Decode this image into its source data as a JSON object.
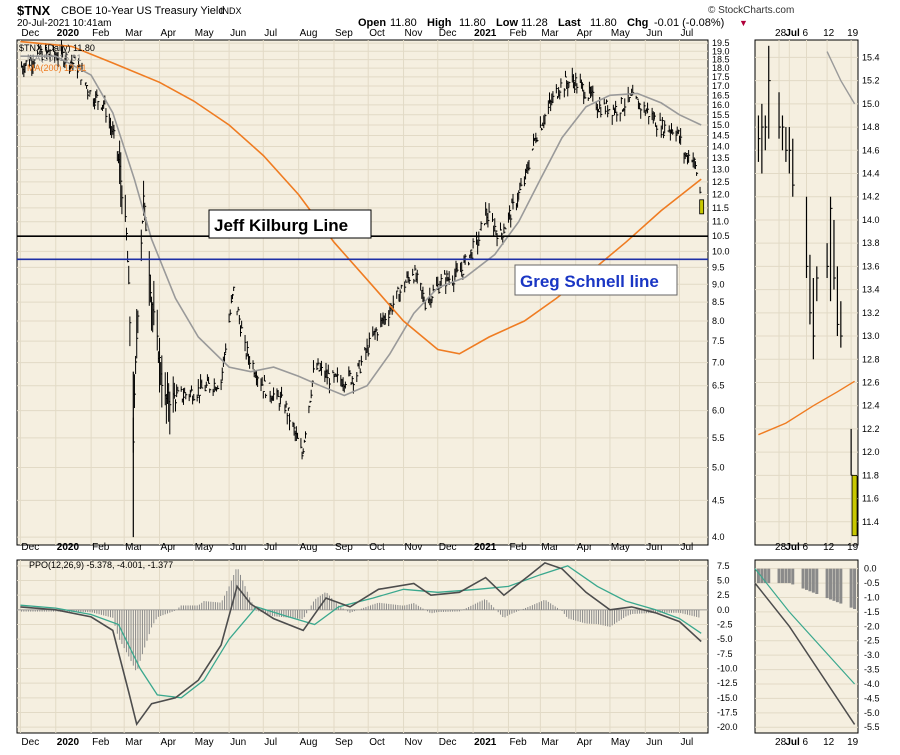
{
  "header": {
    "symbol": "$TNX",
    "name": "CBOE 10-Year US Treasury Yield",
    "exchange": "INDX",
    "date": "20-Jul-2021 10:41am",
    "credit": "© StockCharts.com",
    "ohlc": [
      {
        "label": "Open",
        "value": "11.80"
      },
      {
        "label": "High",
        "value": "11.80"
      },
      {
        "label": "Low",
        "value": "11.28"
      },
      {
        "label": "Last",
        "value": "11.80"
      }
    ],
    "chg_label": "Chg",
    "chg_value": "-0.01 (-0.08%)",
    "chg_arrow": "▼"
  },
  "colors": {
    "panel_bg": "#f5efe0",
    "grid": "#e2dac6",
    "price_bars": "#000000",
    "ma50": "#9a9a9a",
    "ma200": "#ef7c22",
    "kilburg_line": "#000000",
    "schnell_line": "#1d2fa6",
    "schnell_text": "#1a36c4",
    "highlight_bar": "#c8c800",
    "ppo_line": "#4d4d4d",
    "ppo_signal": "#3aa88e",
    "histogram": "#8a8a8a",
    "down_arrow": "#b0003a"
  },
  "legends": {
    "price": "$TNX (Daily) 11.80",
    "ma50": "MA(50) 15.01",
    "ma200": "MA(200) 12.61",
    "ppo": "PPO(12,26,9) -5.378, -4.001, -1.377"
  },
  "annotations": {
    "kilburg": "Jeff Kilburg Line",
    "schnell": "Greg Schnell line"
  },
  "chart_data": {
    "type": "line",
    "main": {
      "x_labels": [
        "Dec",
        "2020",
        "Feb",
        "Mar",
        "Apr",
        "May",
        "Jun",
        "Jul",
        "Aug",
        "Sep",
        "Oct",
        "Nov",
        "Dec",
        "2021",
        "Feb",
        "Mar",
        "Apr",
        "May",
        "Jun",
        "Jul"
      ],
      "bold_x_labels": [
        "2020",
        "2021"
      ],
      "x_months": [
        "2019-12",
        "2020-01",
        "2020-02",
        "2020-03",
        "2020-04",
        "2020-05",
        "2020-06",
        "2020-07",
        "2020-08",
        "2020-09",
        "2020-10",
        "2020-11",
        "2020-12",
        "2021-01",
        "2021-02",
        "2021-03",
        "2021-04",
        "2021-05",
        "2021-06",
        "2021-07"
      ],
      "y_ticks": [
        "19.5",
        "19.0",
        "18.5",
        "18.0",
        "17.5",
        "17.0",
        "16.5",
        "16.0",
        "15.5",
        "15.0",
        "14.5",
        "14.0",
        "13.5",
        "13.0",
        "12.5",
        "12.0",
        "11.5",
        "11.0",
        "10.5",
        "10.0",
        "9.5",
        "9.0",
        "8.5",
        "8.0",
        "7.5",
        "7.0",
        "6.5",
        "6.0",
        "5.5",
        "5.0",
        "4.5",
        "4.0"
      ],
      "ylim": [
        3.9,
        19.7
      ],
      "y_scale": "log",
      "grid": true,
      "close_series_approx": [
        {
          "x": "2019-12-02",
          "y": 18.1
        },
        {
          "x": "2019-12-20",
          "y": 18.9
        },
        {
          "x": "2020-01-08",
          "y": 18.7
        },
        {
          "x": "2020-01-20",
          "y": 18.1
        },
        {
          "x": "2020-02-01",
          "y": 16.5
        },
        {
          "x": "2020-02-12",
          "y": 16.1
        },
        {
          "x": "2020-02-24",
          "y": 13.8
        },
        {
          "x": "2020-03-03",
          "y": 10.5
        },
        {
          "x": "2020-03-09",
          "y": 5.5
        },
        {
          "x": "2020-03-18",
          "y": 11.8
        },
        {
          "x": "2020-03-25",
          "y": 8.5
        },
        {
          "x": "2020-04-05",
          "y": 6.2
        },
        {
          "x": "2020-04-20",
          "y": 6.3
        },
        {
          "x": "2020-05-05",
          "y": 6.4
        },
        {
          "x": "2020-05-25",
          "y": 6.6
        },
        {
          "x": "2020-06-05",
          "y": 8.8
        },
        {
          "x": "2020-06-15",
          "y": 7.3
        },
        {
          "x": "2020-07-01",
          "y": 6.5
        },
        {
          "x": "2020-07-20",
          "y": 6.1
        },
        {
          "x": "2020-08-04",
          "y": 5.2
        },
        {
          "x": "2020-08-15",
          "y": 6.9
        },
        {
          "x": "2020-09-01",
          "y": 6.6
        },
        {
          "x": "2020-09-20",
          "y": 6.7
        },
        {
          "x": "2020-10-07",
          "y": 7.7
        },
        {
          "x": "2020-10-22",
          "y": 8.4
        },
        {
          "x": "2020-11-09",
          "y": 9.4
        },
        {
          "x": "2020-11-20",
          "y": 8.5
        },
        {
          "x": "2020-12-05",
          "y": 9.1
        },
        {
          "x": "2020-12-20",
          "y": 9.3
        },
        {
          "x": "2021-01-06",
          "y": 10.4
        },
        {
          "x": "2021-01-12",
          "y": 11.3
        },
        {
          "x": "2021-01-25",
          "y": 10.5
        },
        {
          "x": "2021-02-05",
          "y": 11.5
        },
        {
          "x": "2021-02-15",
          "y": 12.5
        },
        {
          "x": "2021-02-25",
          "y": 14.5
        },
        {
          "x": "2021-03-08",
          "y": 15.8
        },
        {
          "x": "2021-03-18",
          "y": 17.0
        },
        {
          "x": "2021-03-30",
          "y": 17.3
        },
        {
          "x": "2021-04-10",
          "y": 16.7
        },
        {
          "x": "2021-04-22",
          "y": 15.9
        },
        {
          "x": "2021-05-07",
          "y": 15.8
        },
        {
          "x": "2021-05-20",
          "y": 16.3
        },
        {
          "x": "2021-06-04",
          "y": 15.6
        },
        {
          "x": "2021-06-15",
          "y": 14.9
        },
        {
          "x": "2021-06-28",
          "y": 14.8
        },
        {
          "x": "2021-07-06",
          "y": 13.6
        },
        {
          "x": "2021-07-12",
          "y": 13.6
        },
        {
          "x": "2021-07-16",
          "y": 12.9
        },
        {
          "x": "2021-07-20",
          "y": 11.8
        }
      ],
      "ma50_approx": [
        {
          "x": "2019-12-01",
          "y": 18.7
        },
        {
          "x": "2020-01-01",
          "y": 18.7
        },
        {
          "x": "2020-02-01",
          "y": 17.6
        },
        {
          "x": "2020-02-20",
          "y": 15.6
        },
        {
          "x": "2020-03-10",
          "y": 12.6
        },
        {
          "x": "2020-03-25",
          "y": 10.4
        },
        {
          "x": "2020-04-15",
          "y": 8.6
        },
        {
          "x": "2020-05-05",
          "y": 7.6
        },
        {
          "x": "2020-06-01",
          "y": 6.9
        },
        {
          "x": "2020-06-20",
          "y": 6.8
        },
        {
          "x": "2020-07-10",
          "y": 6.9
        },
        {
          "x": "2020-08-01",
          "y": 6.7
        },
        {
          "x": "2020-08-20",
          "y": 6.5
        },
        {
          "x": "2020-09-10",
          "y": 6.3
        },
        {
          "x": "2020-09-30",
          "y": 6.5
        },
        {
          "x": "2020-10-20",
          "y": 7.2
        },
        {
          "x": "2020-11-10",
          "y": 8.2
        },
        {
          "x": "2020-12-01",
          "y": 8.9
        },
        {
          "x": "2020-12-25",
          "y": 9.2
        },
        {
          "x": "2021-01-20",
          "y": 9.9
        },
        {
          "x": "2021-02-10",
          "y": 11.0
        },
        {
          "x": "2021-03-01",
          "y": 12.6
        },
        {
          "x": "2021-03-20",
          "y": 14.4
        },
        {
          "x": "2021-04-10",
          "y": 15.9
        },
        {
          "x": "2021-05-01",
          "y": 16.5
        },
        {
          "x": "2021-05-25",
          "y": 16.6
        },
        {
          "x": "2021-06-15",
          "y": 16.1
        },
        {
          "x": "2021-07-01",
          "y": 15.5
        },
        {
          "x": "2021-07-20",
          "y": 15.0
        }
      ],
      "ma200_approx": [
        {
          "x": "2019-12-01",
          "y": 19.6
        },
        {
          "x": "2020-01-15",
          "y": 19.3
        },
        {
          "x": "2020-02-20",
          "y": 18.3
        },
        {
          "x": "2020-04-01",
          "y": 17.2
        },
        {
          "x": "2020-05-01",
          "y": 16.2
        },
        {
          "x": "2020-06-01",
          "y": 15.0
        },
        {
          "x": "2020-07-01",
          "y": 13.6
        },
        {
          "x": "2020-08-01",
          "y": 12.0
        },
        {
          "x": "2020-09-01",
          "y": 10.3
        },
        {
          "x": "2020-10-01",
          "y": 9.1
        },
        {
          "x": "2020-11-01",
          "y": 8.0
        },
        {
          "x": "2020-12-01",
          "y": 7.3
        },
        {
          "x": "2020-12-20",
          "y": 7.2
        },
        {
          "x": "2021-01-15",
          "y": 7.6
        },
        {
          "x": "2021-02-15",
          "y": 8.0
        },
        {
          "x": "2021-03-15",
          "y": 8.6
        },
        {
          "x": "2021-04-15",
          "y": 9.4
        },
        {
          "x": "2021-05-15",
          "y": 10.3
        },
        {
          "x": "2021-06-15",
          "y": 11.4
        },
        {
          "x": "2021-07-20",
          "y": 12.61
        }
      ],
      "horizontal_lines": [
        {
          "name": "Jeff Kilburg Line",
          "y": 10.5
        },
        {
          "name": "Greg Schnell line",
          "y": 9.75
        }
      ]
    },
    "zoom": {
      "x_labels": [
        "28",
        "Jul",
        "6",
        "12",
        "19"
      ],
      "bold_x_labels": [
        "Jul"
      ],
      "x_days": [
        "2021-06-28",
        "2021-07-01",
        "2021-07-06",
        "2021-07-12",
        "2021-07-19"
      ],
      "y_ticks": [
        "15.4",
        "15.2",
        "15.0",
        "14.8",
        "14.6",
        "14.4",
        "14.2",
        "14.0",
        "13.8",
        "13.6",
        "13.4",
        "13.2",
        "13.0",
        "12.8",
        "12.6",
        "12.4",
        "12.2",
        "12.0",
        "11.8",
        "11.6",
        "11.4"
      ],
      "ylim": [
        11.2,
        15.55
      ],
      "bars_hlc_approx": [
        {
          "x": "2021-06-22",
          "h": 14.9,
          "l": 14.5,
          "c": 14.7
        },
        {
          "x": "2021-06-23",
          "h": 15.0,
          "l": 14.4,
          "c": 14.8
        },
        {
          "x": "2021-06-24",
          "h": 14.9,
          "l": 14.6,
          "c": 14.8
        },
        {
          "x": "2021-06-25",
          "h": 15.5,
          "l": 14.7,
          "c": 15.2
        },
        {
          "x": "2021-06-28",
          "h": 15.1,
          "l": 14.7,
          "c": 14.8
        },
        {
          "x": "2021-06-29",
          "h": 14.9,
          "l": 14.6,
          "c": 14.8
        },
        {
          "x": "2021-06-30",
          "h": 14.8,
          "l": 14.5,
          "c": 14.6
        },
        {
          "x": "2021-07-01",
          "h": 14.8,
          "l": 14.4,
          "c": 14.6
        },
        {
          "x": "2021-07-02",
          "h": 14.7,
          "l": 14.2,
          "c": 14.3
        },
        {
          "x": "2021-07-06",
          "h": 14.2,
          "l": 13.5,
          "c": 13.6
        },
        {
          "x": "2021-07-07",
          "h": 13.7,
          "l": 13.1,
          "c": 13.2
        },
        {
          "x": "2021-07-08",
          "h": 13.5,
          "l": 12.8,
          "c": 13.0
        },
        {
          "x": "2021-07-09",
          "h": 13.6,
          "l": 13.3,
          "c": 13.5
        },
        {
          "x": "2021-07-12",
          "h": 13.8,
          "l": 13.5,
          "c": 13.6
        },
        {
          "x": "2021-07-13",
          "h": 14.2,
          "l": 13.3,
          "c": 14.1
        },
        {
          "x": "2021-07-14",
          "h": 14.0,
          "l": 13.4,
          "c": 13.5
        },
        {
          "x": "2021-07-15",
          "h": 13.6,
          "l": 13.0,
          "c": 13.1
        },
        {
          "x": "2021-07-16",
          "h": 13.3,
          "l": 12.9,
          "c": 13.0
        },
        {
          "x": "2021-07-19",
          "h": 12.2,
          "l": 11.8,
          "c": 11.8
        },
        {
          "x": "2021-07-20",
          "h": 11.8,
          "l": 11.28,
          "c": 11.8
        }
      ],
      "ma200_approx": [
        {
          "x": "2021-06-22",
          "y": 12.15
        },
        {
          "x": "2021-06-30",
          "y": 12.25
        },
        {
          "x": "2021-07-08",
          "y": 12.4
        },
        {
          "x": "2021-07-15",
          "y": 12.52
        },
        {
          "x": "2021-07-20",
          "y": 12.61
        }
      ],
      "ma50_approx": [
        {
          "x": "2021-07-12",
          "y": 15.45
        },
        {
          "x": "2021-07-16",
          "y": 15.2
        },
        {
          "x": "2021-07-20",
          "y": 15.0
        }
      ]
    },
    "ppo": {
      "name": "PPO(12,26,9)",
      "values": {
        "ppo": -5.378,
        "signal": -4.001,
        "histogram": -1.377
      },
      "y_ticks": [
        "7.5",
        "5.0",
        "2.5",
        "0.0",
        "-2.5",
        "-5.0",
        "-7.5",
        "-10.0",
        "-12.5",
        "-15.0",
        "-17.5",
        "-20.0"
      ],
      "ylim": [
        -21,
        8.5
      ],
      "ppo_line_approx": [
        {
          "x": "2019-12-01",
          "y": 0.5
        },
        {
          "x": "2020-01-01",
          "y": 0.0
        },
        {
          "x": "2020-02-01",
          "y": -1.2
        },
        {
          "x": "2020-02-20",
          "y": -3.5
        },
        {
          "x": "2020-03-05",
          "y": -14
        },
        {
          "x": "2020-03-12",
          "y": -19.5
        },
        {
          "x": "2020-03-25",
          "y": -16
        },
        {
          "x": "2020-04-15",
          "y": -15
        },
        {
          "x": "2020-05-05",
          "y": -12
        },
        {
          "x": "2020-05-25",
          "y": -6
        },
        {
          "x": "2020-06-08",
          "y": 4
        },
        {
          "x": "2020-06-20",
          "y": 1
        },
        {
          "x": "2020-07-10",
          "y": -1.5
        },
        {
          "x": "2020-08-05",
          "y": -3.5
        },
        {
          "x": "2020-08-25",
          "y": 2
        },
        {
          "x": "2020-09-15",
          "y": 0.5
        },
        {
          "x": "2020-10-10",
          "y": 3.5
        },
        {
          "x": "2020-11-10",
          "y": 4.5
        },
        {
          "x": "2020-11-25",
          "y": 2.5
        },
        {
          "x": "2020-12-20",
          "y": 3
        },
        {
          "x": "2021-01-12",
          "y": 5.5
        },
        {
          "x": "2021-01-28",
          "y": 2.5
        },
        {
          "x": "2021-02-20",
          "y": 6
        },
        {
          "x": "2021-03-05",
          "y": 8
        },
        {
          "x": "2021-03-20",
          "y": 7
        },
        {
          "x": "2021-04-10",
          "y": 3
        },
        {
          "x": "2021-05-01",
          "y": 0
        },
        {
          "x": "2021-05-20",
          "y": 0.5
        },
        {
          "x": "2021-06-10",
          "y": -0.5
        },
        {
          "x": "2021-07-01",
          "y": -2
        },
        {
          "x": "2021-07-20",
          "y": -5.4
        }
      ],
      "signal_line_approx": [
        {
          "x": "2019-12-01",
          "y": 0.8
        },
        {
          "x": "2020-01-01",
          "y": 0.3
        },
        {
          "x": "2020-02-01",
          "y": -0.8
        },
        {
          "x": "2020-02-25",
          "y": -2.5
        },
        {
          "x": "2020-03-15",
          "y": -10
        },
        {
          "x": "2020-03-30",
          "y": -14.5
        },
        {
          "x": "2020-04-20",
          "y": -15
        },
        {
          "x": "2020-05-10",
          "y": -12
        },
        {
          "x": "2020-06-01",
          "y": -5
        },
        {
          "x": "2020-06-25",
          "y": 0.5
        },
        {
          "x": "2020-07-20",
          "y": -1
        },
        {
          "x": "2020-08-15",
          "y": -2.5
        },
        {
          "x": "2020-09-05",
          "y": 0.5
        },
        {
          "x": "2020-10-05",
          "y": 2
        },
        {
          "x": "2020-11-01",
          "y": 3.5
        },
        {
          "x": "2020-12-01",
          "y": 3
        },
        {
          "x": "2021-01-05",
          "y": 3.5
        },
        {
          "x": "2021-02-01",
          "y": 4
        },
        {
          "x": "2021-03-01",
          "y": 6
        },
        {
          "x": "2021-03-25",
          "y": 7.5
        },
        {
          "x": "2021-04-20",
          "y": 4
        },
        {
          "x": "2021-05-15",
          "y": 1.5
        },
        {
          "x": "2021-06-10",
          "y": 0
        },
        {
          "x": "2021-07-01",
          "y": -1.5
        },
        {
          "x": "2021-07-20",
          "y": -4.0
        }
      ]
    },
    "ppo_zoom": {
      "y_ticks": [
        "0.0",
        "-0.5",
        "-1.0",
        "-1.5",
        "-2.0",
        "-2.5",
        "-3.0",
        "-3.5",
        "-4.0",
        "-4.5",
        "-5.0",
        "-5.5"
      ],
      "ylim": [
        -5.7,
        0.3
      ]
    }
  }
}
